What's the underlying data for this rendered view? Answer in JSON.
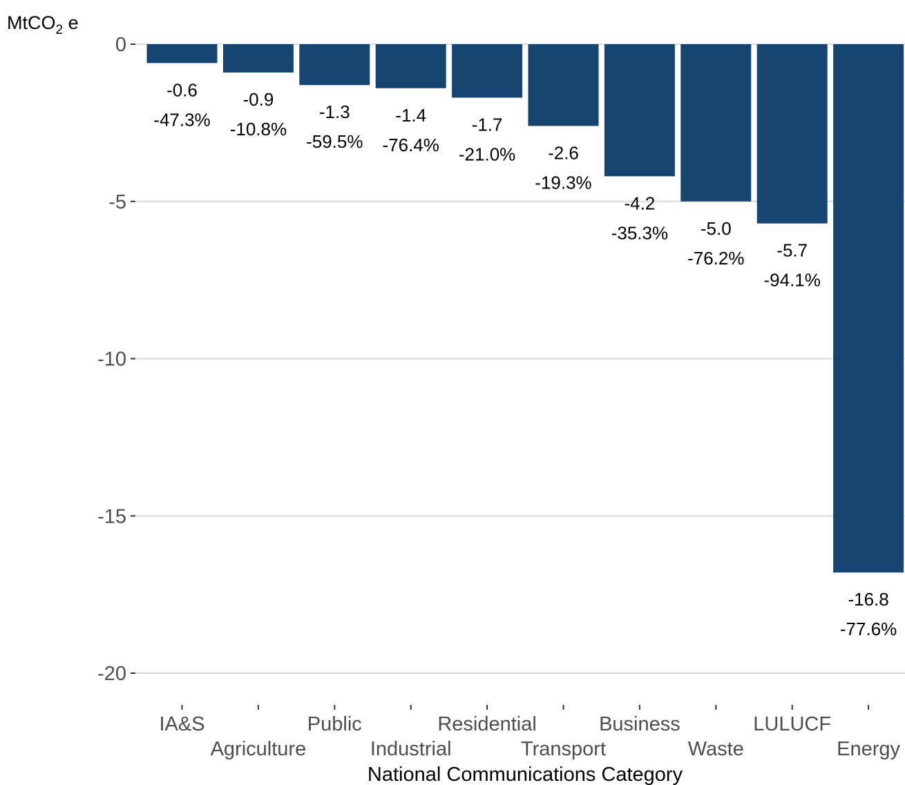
{
  "chart_data": {
    "type": "bar",
    "categories": [
      "IA&S",
      "Agriculture",
      "Public",
      "Industrial",
      "Residential",
      "Transport",
      "Business",
      "Waste",
      "LULUCF",
      "Energy"
    ],
    "values": [
      -0.6,
      -0.9,
      -1.3,
      -1.4,
      -1.7,
      -2.6,
      -4.2,
      -5.0,
      -5.7,
      -16.8
    ],
    "value_labels": [
      "-0.6",
      "-0.9",
      "-1.3",
      "-1.4",
      "-1.7",
      "-2.6",
      "-4.2",
      "-5.0",
      "-5.7",
      "-16.8"
    ],
    "percent_labels": [
      "-47.3%",
      "-10.8%",
      "-59.5%",
      "-76.4%",
      "-21.0%",
      "-19.3%",
      "-35.3%",
      "-76.2%",
      "-94.1%",
      "-77.6%"
    ],
    "ylabel_main": "MtCO",
    "ylabel_sub": "2",
    "ylabel_suffix": " e",
    "xlabel": "National Communications Category",
    "ylim": [
      -21,
      0
    ],
    "yticks": [
      0,
      -5,
      -10,
      -15,
      -20
    ],
    "ytick_labels": [
      "0",
      "-5",
      "-10",
      "-15",
      "-20"
    ],
    "grid": true,
    "bar_color": "#154470",
    "grid_color": "#d9d9d9"
  }
}
